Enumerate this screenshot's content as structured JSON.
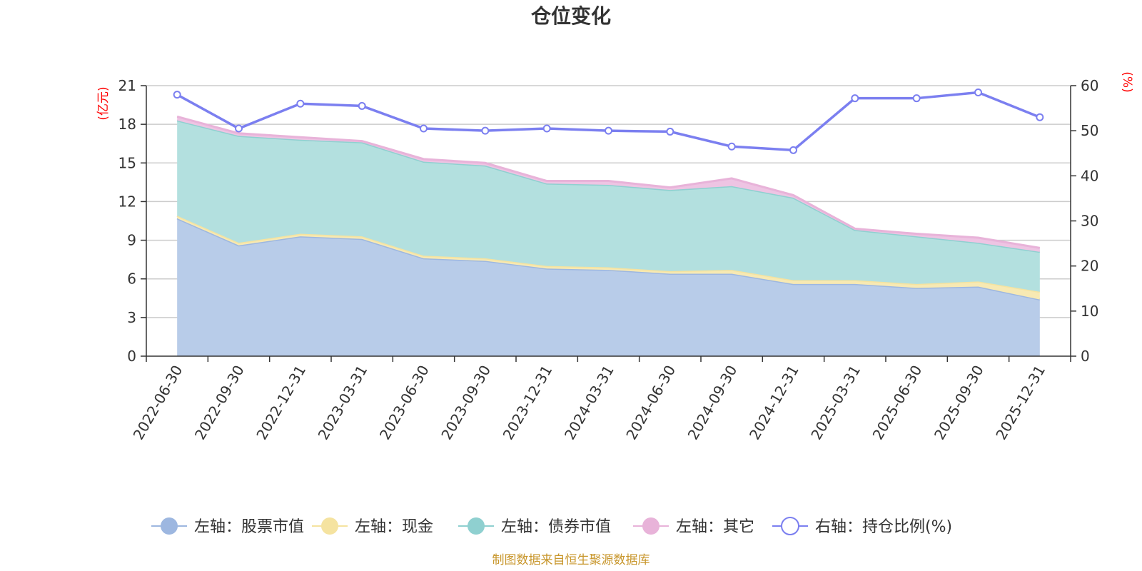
{
  "chart_data": {
    "type": "area",
    "title": "仓位变化",
    "source": "制图数据来自恒生聚源数据库",
    "left_axis": {
      "unit": "(亿元)",
      "ylim": [
        0,
        21
      ],
      "ticks": [
        0,
        3,
        6,
        9,
        12,
        15,
        18,
        21
      ],
      "color": "#ff0000"
    },
    "right_axis": {
      "unit": "(%)",
      "ylim": [
        0,
        60
      ],
      "ticks": [
        0,
        10,
        20,
        30,
        40,
        50,
        60
      ],
      "color": "#ff0000"
    },
    "categories": [
      "2022-06-30",
      "2022-09-30",
      "2022-12-31",
      "2023-03-31",
      "2023-06-30",
      "2023-09-30",
      "2023-12-31",
      "2024-03-31",
      "2024-06-30",
      "2024-09-30",
      "2024-12-31",
      "2025-03-31",
      "2025-06-30",
      "2025-09-30",
      "2025-12-31"
    ],
    "stacked_series": [
      {
        "name": "左轴：股票市值",
        "color": "#9db7e0",
        "fill": "#b8cce9",
        "values": [
          10.7,
          8.6,
          9.3,
          9.1,
          7.6,
          7.4,
          6.8,
          6.7,
          6.4,
          6.4,
          5.6,
          5.6,
          5.3,
          5.4,
          4.4
        ]
      },
      {
        "name": "左轴：现金",
        "color": "#f5e3a0",
        "fill": "#f7e9b3",
        "values": [
          0.2,
          0.2,
          0.2,
          0.2,
          0.2,
          0.2,
          0.2,
          0.2,
          0.2,
          0.3,
          0.3,
          0.3,
          0.3,
          0.4,
          0.6
        ]
      },
      {
        "name": "左轴：债券市值",
        "color": "#8fd0d0",
        "fill": "#b3e0df",
        "values": [
          7.4,
          8.3,
          7.3,
          7.3,
          7.3,
          7.2,
          6.4,
          6.4,
          6.3,
          6.5,
          6.4,
          3.9,
          3.7,
          3.0,
          3.1
        ]
      },
      {
        "name": "左轴：其它",
        "color": "#e8b3d9",
        "fill": "#eec4e3",
        "values": [
          0.3,
          0.2,
          0.2,
          0.1,
          0.2,
          0.2,
          0.2,
          0.3,
          0.2,
          0.6,
          0.2,
          0.1,
          0.2,
          0.4,
          0.3
        ]
      }
    ],
    "line_series": {
      "name": "右轴：持仓比例(%)",
      "color": "#7b7ff0",
      "values": [
        58,
        50.5,
        56,
        55.5,
        50.5,
        50,
        50.5,
        50,
        49.8,
        46.5,
        45.7,
        57.2,
        57.2,
        58.5,
        53
      ]
    }
  }
}
